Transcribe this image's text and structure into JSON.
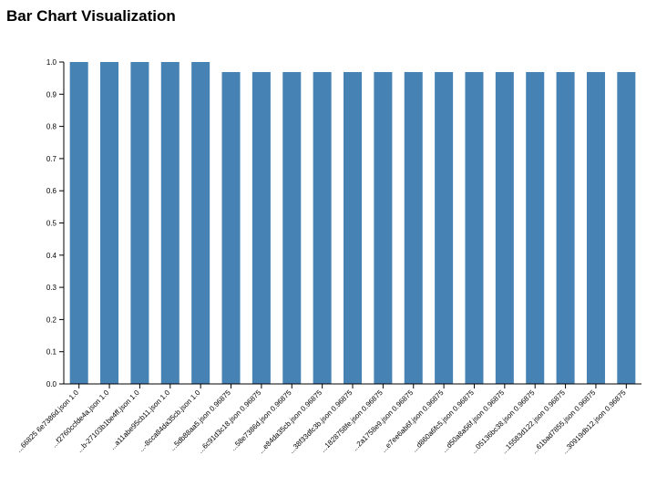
{
  "page": {
    "title": "Bar Chart Visualization"
  },
  "chart_data": {
    "type": "bar",
    "title": "",
    "xlabel": "",
    "ylabel": "",
    "ylim": [
      0,
      1.0
    ],
    "yticks": [
      "0.0",
      "0.1",
      "0.2",
      "0.3",
      "0.4",
      "0.5",
      "0.6",
      "0.7",
      "0.8",
      "0.9",
      "1.0"
    ],
    "grid": false,
    "bar_color": "#4682b4",
    "categories": [
      "...66825 6e7386d.json 1.0",
      "...f2760ccfde4a.json 1.0",
      "...b-27103b1be4ff.json 1.0",
      "...a11abe95cb11.json 1.0",
      "...-8cca84da35cb.json 1.0",
      "...5db88aa5.json 0.96875",
      "...6c91d3c18.json 0.96875",
      "...58e7386d.json 0.96875",
      "...e84da35cb.json 0.96875",
      "...38f33dfc3b.json 0.96875",
      "...1828758fe.json 0.96875",
      "...2a1758e9.json 0.96875",
      "...e7ee6ab6f.json 0.96875",
      "...d860a6fc5.json 0.96875",
      "...d50a8a56f.json 0.96875",
      "...05136bc38.json 0.96875",
      "...15583d122.json 0.96875",
      "...61bad7855.json 0.96875",
      "...30919db12.json 0.96875"
    ],
    "values": [
      1.0,
      1.0,
      1.0,
      1.0,
      1.0,
      0.96875,
      0.96875,
      0.96875,
      0.96875,
      0.96875,
      0.96875,
      0.96875,
      0.96875,
      0.96875,
      0.96875,
      0.96875,
      0.96875,
      0.96875,
      0.96875
    ]
  }
}
